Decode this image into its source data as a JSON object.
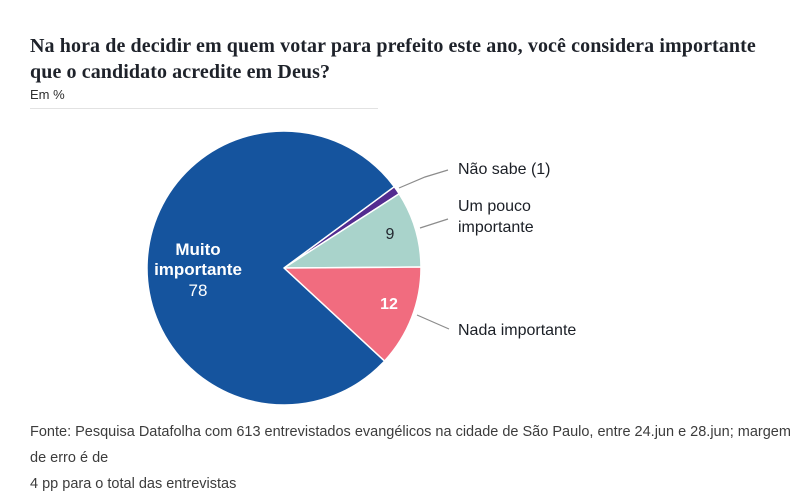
{
  "header": {
    "title_lines": [
      "Na hora de decidir em quem votar para prefeito este ano, você considera importante",
      "que o candidato acredite em Deus?"
    ],
    "unit_label": "Em %"
  },
  "chart_data": {
    "type": "pie",
    "title": "Na hora de decidir em quem votar para prefeito este ano, você considera importante que o candidato acredite em Deus?",
    "unit": "%",
    "unit_label": "Em %",
    "start_angle_deg": 36.4,
    "legend_position": "callouts",
    "slices": [
      {
        "id": "nao-sabe",
        "label": "Não sabe",
        "value": 1,
        "color": "#532c90",
        "callout": "Não sabe (1)"
      },
      {
        "id": "um-pouco-importante",
        "label": "Um pouco importante",
        "value": 9,
        "color": "#a9d3cb",
        "callout": "Um pouco importante"
      },
      {
        "id": "nada-importante",
        "label": "Nada importante",
        "value": 12,
        "color": "#f16c7f",
        "callout": "Nada importante"
      },
      {
        "id": "muito-importante",
        "label": "Muito importante",
        "value": 78,
        "color": "#15549e",
        "callout": "Muito importante"
      }
    ]
  },
  "footer": {
    "source_lines": [
      "Fonte: Pesquisa Datafolha com 613 entrevistados evangélicos na cidade de São Paulo, entre 24.jun e 28.jun; margem de erro é de",
      "4 pp para o total das entrevistas"
    ]
  }
}
